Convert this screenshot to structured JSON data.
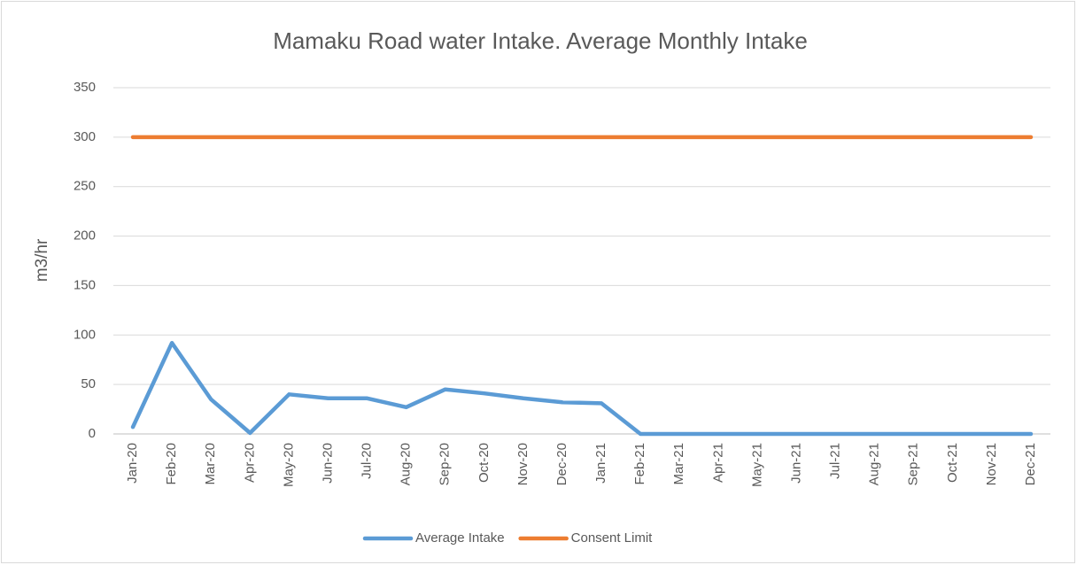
{
  "chart_data": {
    "type": "line",
    "title": "Mamaku Road water Intake. Average Monthly Intake",
    "y_label": "m3/hr",
    "categories": [
      "Jan-20",
      "Feb-20",
      "Mar-20",
      "Apr-20",
      "May-20",
      "Jun-20",
      "Jul-20",
      "Aug-20",
      "Sep-20",
      "Oct-20",
      "Nov-20",
      "Dec-20",
      "Jan-21",
      "Feb-21",
      "Mar-21",
      "Apr-21",
      "May-21",
      "Jun-21",
      "Jul-21",
      "Aug-21",
      "Sep-21",
      "Oct-21",
      "Nov-21",
      "Dec-21"
    ],
    "series": [
      {
        "name": "Average Intake",
        "color": "#5b9bd5",
        "values": [
          7,
          92,
          35,
          1,
          40,
          36,
          36,
          27,
          45,
          41,
          36,
          32,
          31,
          0,
          0,
          0,
          0,
          0,
          0,
          0,
          0,
          0,
          0,
          0
        ]
      },
      {
        "name": "Consent Limit",
        "color": "#ed7d31",
        "values": [
          300,
          300,
          300,
          300,
          300,
          300,
          300,
          300,
          300,
          300,
          300,
          300,
          300,
          300,
          300,
          300,
          300,
          300,
          300,
          300,
          300,
          300,
          300,
          300
        ]
      }
    ],
    "ylim": [
      0,
      350
    ],
    "yticks": [
      0,
      50,
      100,
      150,
      200,
      250,
      300,
      350
    ],
    "grid": true,
    "legend": "bottom"
  }
}
